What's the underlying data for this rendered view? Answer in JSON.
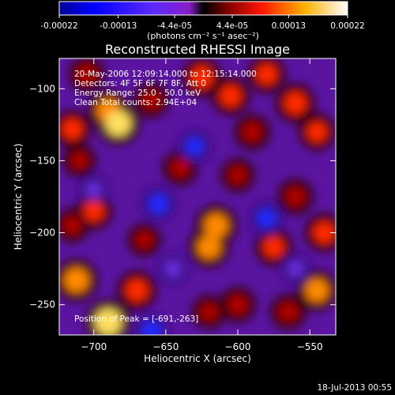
{
  "chart_data": {
    "type": "heatmap",
    "title": "Reconstructed RHESSI Image",
    "xlabel": "Heliocentric X (arcsec)",
    "ylabel": "Heliocentric Y (arcsec)",
    "xlim": [
      -724,
      -532
    ],
    "ylim": [
      -271,
      -79
    ],
    "xticks": [
      -700,
      -650,
      -600,
      -550
    ],
    "yticks": [
      -100,
      -150,
      -200,
      -250
    ],
    "colorbar": {
      "range": [
        -0.00022,
        0.00022
      ],
      "ticks": [
        "-0.00022",
        "-0.00013",
        "-4.4e-05",
        "4.4e-05",
        "0.00013",
        "0.00022"
      ],
      "tick_values": [
        -0.00022,
        -0.00013,
        -4.4e-05,
        4.4e-05,
        0.00013,
        0.00022
      ],
      "unit_label": "(photons cm⁻² s⁻¹ asec⁻²)"
    },
    "annotations": [
      "20-May-2006 12:09:14.000 to 12:15:14.000",
      "Detectors: 4F 5F 6F 7F 8F, Att 0",
      "Energy Range: 25.0 - 50.0 keV",
      "Clean    Total counts: 2.94E+04"
    ],
    "peak_label": "Position of Peak = [-691,-263]",
    "peak": [
      -691,
      -263
    ],
    "blobs": [
      {
        "x": -705,
        "y": -90,
        "v": 0.00012
      },
      {
        "x": -690,
        "y": -115,
        "v": 0.00017
      },
      {
        "x": -683,
        "y": -124,
        "v": 0.0002
      },
      {
        "x": -715,
        "y": -128,
        "v": 0.00014
      },
      {
        "x": -710,
        "y": -150,
        "v": 9e-05
      },
      {
        "x": -660,
        "y": -108,
        "v": 0.00011
      },
      {
        "x": -625,
        "y": -92,
        "v": 0.00016
      },
      {
        "x": -605,
        "y": -105,
        "v": 0.00015
      },
      {
        "x": -580,
        "y": -90,
        "v": 0.00014
      },
      {
        "x": -560,
        "y": -110,
        "v": 0.00016
      },
      {
        "x": -545,
        "y": -130,
        "v": 0.00013
      },
      {
        "x": -590,
        "y": -130,
        "v": 0.00012
      },
      {
        "x": -600,
        "y": -160,
        "v": 0.0001
      },
      {
        "x": -560,
        "y": -175,
        "v": 0.00012
      },
      {
        "x": -540,
        "y": -200,
        "v": 0.00015
      },
      {
        "x": -615,
        "y": -195,
        "v": 0.00018
      },
      {
        "x": -620,
        "y": -210,
        "v": 0.00017
      },
      {
        "x": -575,
        "y": -210,
        "v": 0.00014
      },
      {
        "x": -545,
        "y": -240,
        "v": 0.00017
      },
      {
        "x": -565,
        "y": -255,
        "v": 0.00012
      },
      {
        "x": -640,
        "y": -155,
        "v": 0.00011
      },
      {
        "x": -700,
        "y": -185,
        "v": 0.00013
      },
      {
        "x": -715,
        "y": -195,
        "v": 0.0001
      },
      {
        "x": -665,
        "y": -205,
        "v": 9e-05
      },
      {
        "x": -712,
        "y": -233,
        "v": 0.00019
      },
      {
        "x": -690,
        "y": -262,
        "v": 0.00022
      },
      {
        "x": -670,
        "y": -240,
        "v": 0.00016
      },
      {
        "x": -620,
        "y": -255,
        "v": 0.0001
      },
      {
        "x": -600,
        "y": -250,
        "v": 0.00012
      },
      {
        "x": -655,
        "y": -180,
        "v": -0.00012
      },
      {
        "x": -630,
        "y": -140,
        "v": -0.0001
      },
      {
        "x": -580,
        "y": -190,
        "v": -0.00011
      },
      {
        "x": -660,
        "y": -268,
        "v": -0.00012
      },
      {
        "x": -700,
        "y": -170,
        "v": -6e-05
      },
      {
        "x": -645,
        "y": -225,
        "v": -8e-05
      },
      {
        "x": -560,
        "y": -225,
        "v": -7e-05
      }
    ]
  },
  "footer": {
    "timestamp": "18-Jul-2013 00:55"
  }
}
